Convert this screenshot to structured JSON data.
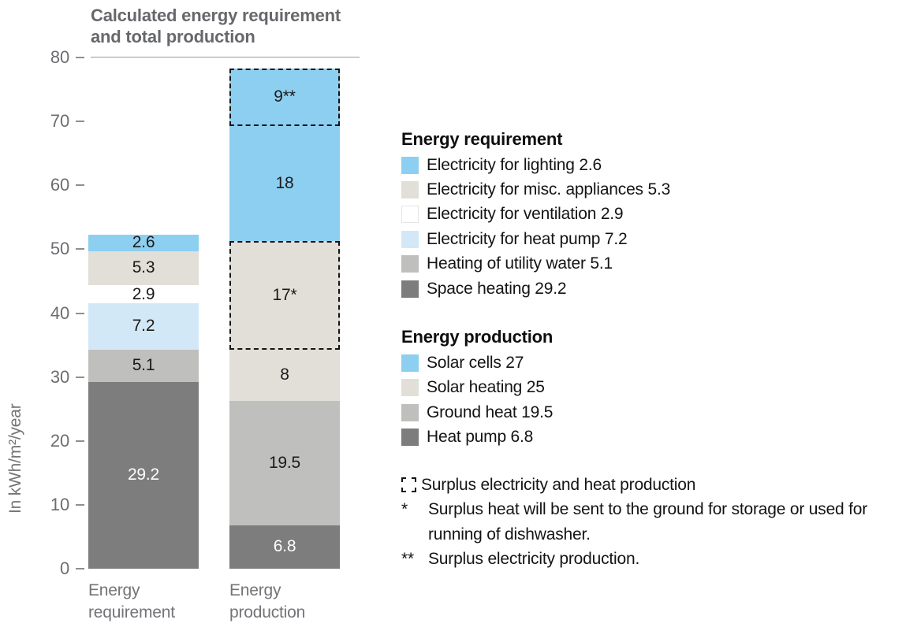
{
  "title": "Calculated energy requirement\nand total production",
  "y_axis": {
    "label": "In kWh/m²/year",
    "ticks": [
      80,
      70,
      60,
      50,
      40,
      30,
      20,
      10,
      0
    ]
  },
  "colors": {
    "blue": "#8DCFF0",
    "lightblue": "#D3E8F6",
    "beige": "#E1DFD8",
    "gray": "#BFBFBD",
    "darkgray": "#7D7D7D",
    "white": "#FFFFFF",
    "dashed_border": "#141414",
    "axis_text": "#6B6D70",
    "title_text": "#67686C",
    "value_dark": "#1A1A1A",
    "value_light": "#FFFFFF"
  },
  "chart_data": {
    "type": "bar",
    "stacked": true,
    "title": "Calculated energy requirement and total production",
    "ylabel": "In kWh/m²/year",
    "ylim": [
      0,
      80
    ],
    "y_ticks": [
      80,
      70,
      60,
      50,
      40,
      30,
      20,
      10,
      0
    ],
    "grid": "top-rule-at-80-only",
    "legend_position": "right",
    "categories": [
      "Energy requirement",
      "Energy production"
    ],
    "bars": [
      {
        "category": "Energy requirement",
        "category_label": "Energy\nrequirement",
        "total": 52.3,
        "segments_top_to_bottom": [
          {
            "name": "Electricity for lighting",
            "value": 2.6,
            "label": "2.6",
            "color": "blue",
            "text": "dark",
            "surplus": false
          },
          {
            "name": "Electricity for misc. appliances",
            "value": 5.3,
            "label": "5.3",
            "color": "beige",
            "text": "dark",
            "surplus": false
          },
          {
            "name": "Electricity for ventilation",
            "value": 2.9,
            "label": "2.9",
            "color": "white",
            "text": "dark",
            "surplus": false
          },
          {
            "name": "Electricity for heat pump",
            "value": 7.2,
            "label": "7.2",
            "color": "lightblue",
            "text": "dark",
            "surplus": false
          },
          {
            "name": "Heating of utility water",
            "value": 5.1,
            "label": "5.1",
            "color": "gray",
            "text": "dark",
            "surplus": false
          },
          {
            "name": "Space heating",
            "value": 29.2,
            "label": "29.2",
            "color": "darkgray",
            "text": "light",
            "surplus": false
          }
        ]
      },
      {
        "category": "Energy production",
        "category_label": "Energy\nproduction",
        "total": 78.3,
        "segments_top_to_bottom": [
          {
            "name": "Solar cells surplus",
            "value": 9,
            "label": "9**",
            "color": "blue",
            "text": "dark",
            "surplus": true
          },
          {
            "name": "Solar cells",
            "value": 18,
            "label": "18",
            "color": "blue",
            "text": "dark",
            "surplus": false
          },
          {
            "name": "Solar heating surplus",
            "value": 17,
            "label": "17*",
            "color": "beige",
            "text": "dark",
            "surplus": true
          },
          {
            "name": "Solar heating",
            "value": 8,
            "label": "8",
            "color": "beige",
            "text": "dark",
            "surplus": false
          },
          {
            "name": "Ground heat",
            "value": 19.5,
            "label": "19.5",
            "color": "gray",
            "text": "dark",
            "surplus": false
          },
          {
            "name": "Heat pump",
            "value": 6.8,
            "label": "6.8",
            "color": "darkgray",
            "text": "light",
            "surplus": false
          }
        ]
      }
    ]
  },
  "legend": {
    "sections": [
      {
        "header": "Energy requirement",
        "items": [
          {
            "color": "blue",
            "label": "Electricity for lighting 2.6"
          },
          {
            "color": "beige",
            "label": "Electricity for misc. appliances 5.3"
          },
          {
            "color": "white",
            "label": "Electricity for ventilation 2.9"
          },
          {
            "color": "lightblue",
            "label": "Electricity for heat pump 7.2"
          },
          {
            "color": "gray",
            "label": "Heating of utility water 5.1"
          },
          {
            "color": "darkgray",
            "label": "Space heating 29.2"
          }
        ]
      },
      {
        "header": "Energy production",
        "items": [
          {
            "color": "blue",
            "label": "Solar cells 27"
          },
          {
            "color": "beige",
            "label": "Solar heating 25"
          },
          {
            "color": "gray",
            "label": "Ground heat 19.5"
          },
          {
            "color": "darkgray",
            "label": "Heat pump 6.8"
          }
        ]
      }
    ],
    "footnotes": [
      {
        "marker": "dashed-box",
        "text": "Surplus electricity and heat production"
      },
      {
        "marker": "*",
        "text": "Surplus heat will be sent to the ground for storage or used for running of dishwasher."
      },
      {
        "marker": "**",
        "text": "Surplus electricity production."
      }
    ]
  }
}
